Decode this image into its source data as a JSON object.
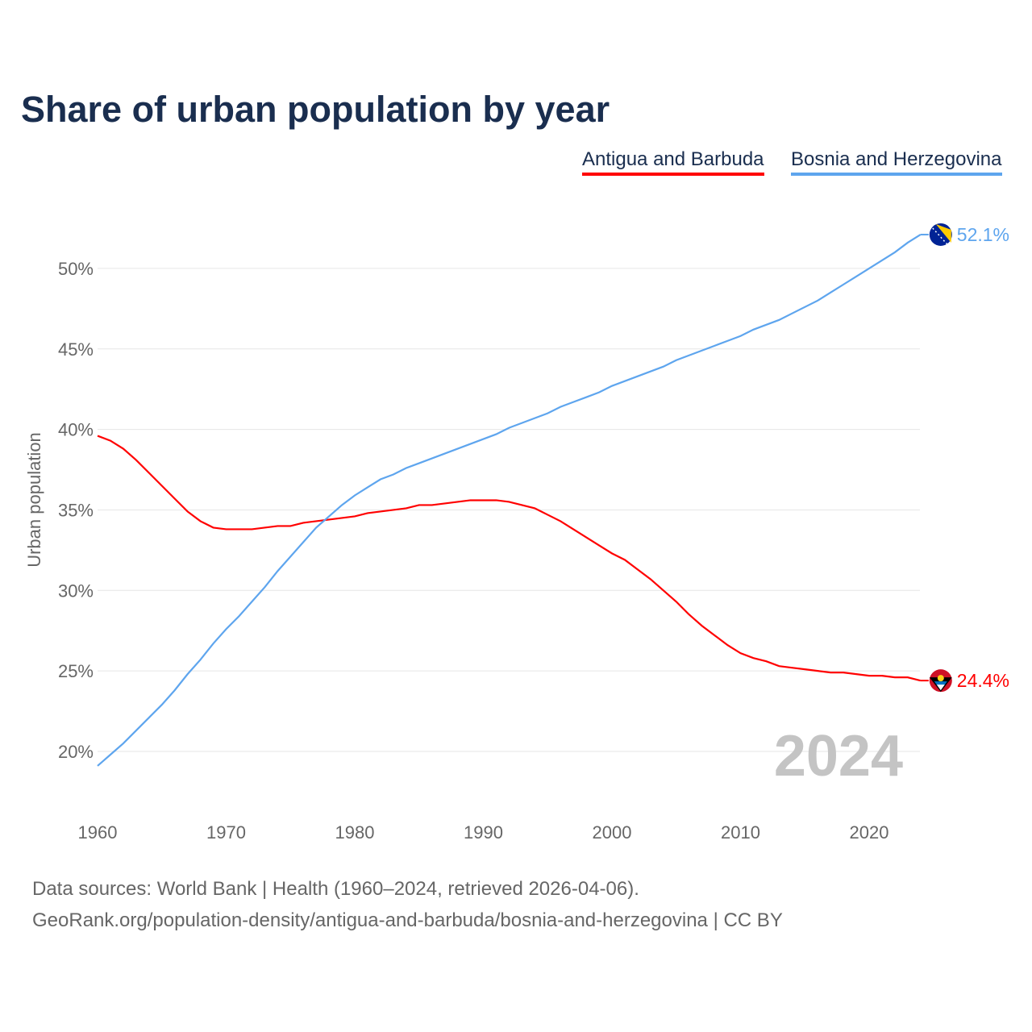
{
  "chart_data": {
    "type": "line",
    "title": "Share of urban population by year",
    "ylabel": "Urban population",
    "xlabel": "",
    "x_ticks": [
      "1960",
      "1970",
      "1980",
      "1990",
      "2000",
      "2010",
      "2020"
    ],
    "y_ticks": [
      "20%",
      "25%",
      "30%",
      "35%",
      "40%",
      "45%",
      "50%"
    ],
    "y_tick_values": [
      20,
      25,
      30,
      35,
      40,
      45,
      50
    ],
    "xlim": [
      1960,
      2024
    ],
    "grid": true,
    "legend_placement": "top-right",
    "year_label": "2024",
    "x": [
      1960,
      1961,
      1962,
      1963,
      1964,
      1965,
      1966,
      1967,
      1968,
      1969,
      1970,
      1971,
      1972,
      1973,
      1974,
      1975,
      1976,
      1977,
      1978,
      1979,
      1980,
      1981,
      1982,
      1983,
      1984,
      1985,
      1986,
      1987,
      1988,
      1989,
      1990,
      1991,
      1992,
      1993,
      1994,
      1995,
      1996,
      1997,
      1998,
      1999,
      2000,
      2001,
      2002,
      2003,
      2004,
      2005,
      2006,
      2007,
      2008,
      2009,
      2010,
      2011,
      2012,
      2013,
      2014,
      2015,
      2016,
      2017,
      2018,
      2019,
      2020,
      2021,
      2022,
      2023,
      2024
    ],
    "series": [
      {
        "name": "Antigua and Barbuda",
        "color": "#ff0000",
        "end_label": "24.4%",
        "values": [
          39.6,
          39.3,
          38.8,
          38.1,
          37.3,
          36.5,
          35.7,
          34.9,
          34.3,
          33.9,
          33.8,
          33.8,
          33.8,
          33.9,
          34.0,
          34.0,
          34.2,
          34.3,
          34.4,
          34.5,
          34.6,
          34.8,
          34.9,
          35.0,
          35.1,
          35.3,
          35.3,
          35.4,
          35.5,
          35.6,
          35.6,
          35.6,
          35.5,
          35.3,
          35.1,
          34.7,
          34.3,
          33.8,
          33.3,
          32.8,
          32.3,
          31.9,
          31.3,
          30.7,
          30.0,
          29.3,
          28.5,
          27.8,
          27.2,
          26.6,
          26.1,
          25.8,
          25.6,
          25.3,
          25.2,
          25.1,
          25.0,
          24.9,
          24.9,
          24.8,
          24.7,
          24.7,
          24.6,
          24.6,
          24.4
        ]
      },
      {
        "name": "Bosnia and Herzegovina",
        "color": "#5ea5ee",
        "end_label": "52.1%",
        "values": [
          19.1,
          19.8,
          20.5,
          21.3,
          22.1,
          22.9,
          23.8,
          24.8,
          25.7,
          26.7,
          27.6,
          28.4,
          29.3,
          30.2,
          31.2,
          32.1,
          33.0,
          33.9,
          34.6,
          35.3,
          35.9,
          36.4,
          36.9,
          37.2,
          37.6,
          37.9,
          38.2,
          38.5,
          38.8,
          39.1,
          39.4,
          39.7,
          40.1,
          40.4,
          40.7,
          41.0,
          41.4,
          41.7,
          42.0,
          42.3,
          42.7,
          43.0,
          43.3,
          43.6,
          43.9,
          44.3,
          44.6,
          44.9,
          45.2,
          45.5,
          45.8,
          46.2,
          46.5,
          46.8,
          47.2,
          47.6,
          48.0,
          48.5,
          49.0,
          49.5,
          50.0,
          50.5,
          51.0,
          51.6,
          52.1
        ]
      }
    ]
  },
  "footer": {
    "line1": "Data sources: World Bank | Health (1960–2024, retrieved 2026-04-06).",
    "line2": "GeoRank.org/population-density/antigua-and-barbuda/bosnia-and-herzegovina | CC BY"
  }
}
